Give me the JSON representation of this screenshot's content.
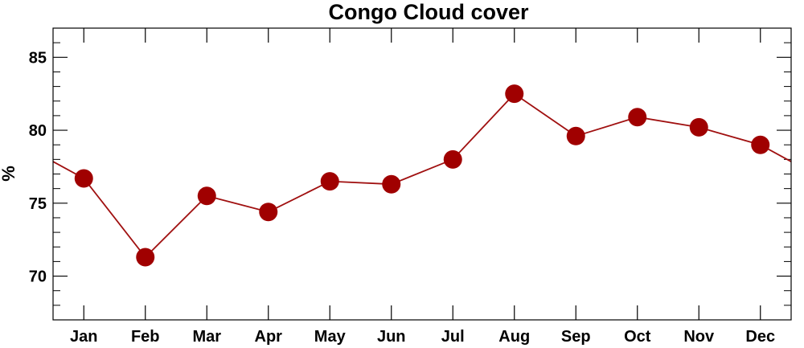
{
  "chart_data": {
    "type": "line",
    "title": "Congo Cloud cover",
    "xlabel": "",
    "ylabel": "%",
    "categories": [
      "Jan",
      "Feb",
      "Mar",
      "Apr",
      "May",
      "Jun",
      "Jul",
      "Aug",
      "Sep",
      "Oct",
      "Nov",
      "Dec"
    ],
    "series": [
      {
        "values": [
          76.7,
          71.3,
          75.5,
          74.4,
          76.5,
          76.3,
          78.0,
          82.5,
          79.6,
          80.9,
          80.2,
          79.0
        ]
      }
    ],
    "ylim": [
      67,
      87
    ],
    "yticks": [
      70,
      75,
      80,
      85
    ],
    "grid": false,
    "line_color": "#a01010",
    "marker_color": "#a00000"
  }
}
